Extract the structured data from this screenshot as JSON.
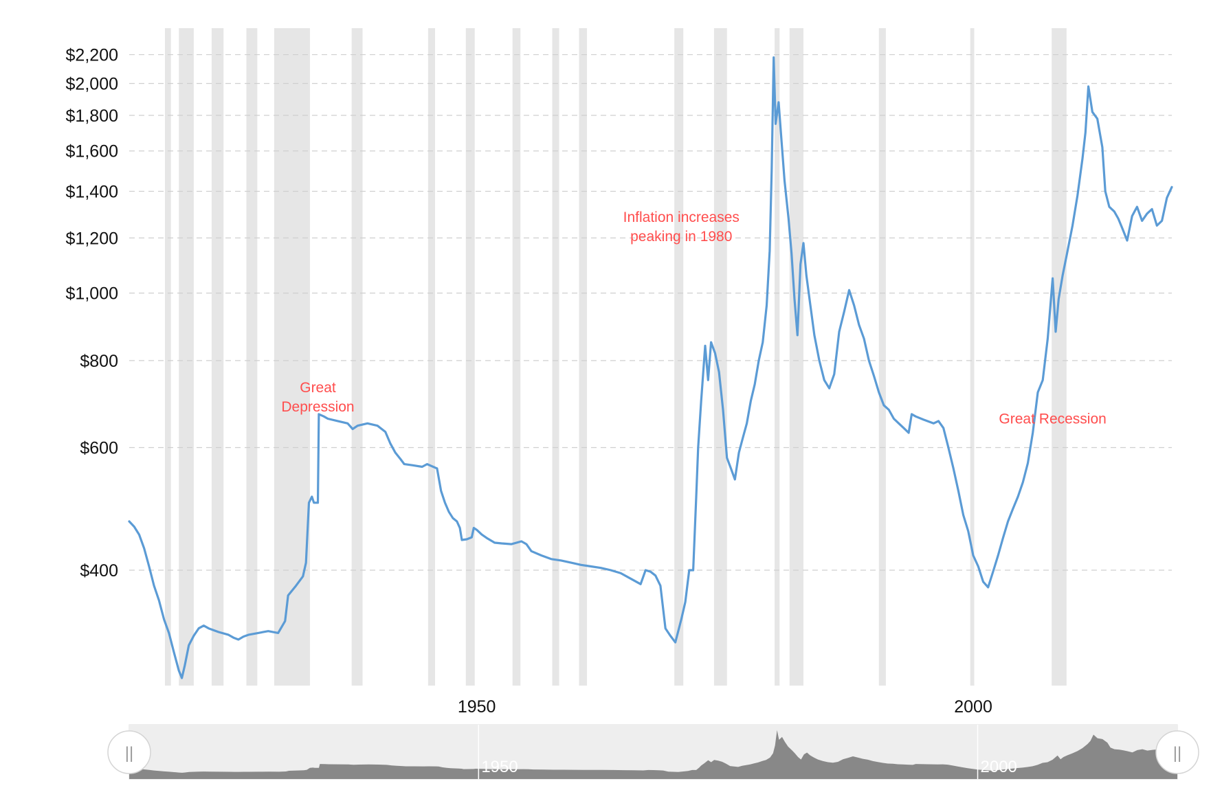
{
  "chart_data": {
    "type": "line",
    "title": "",
    "xlabel": "",
    "ylabel": "",
    "y_scale": "log",
    "xlim": [
      1915,
      2020
    ],
    "ylim": [
      270,
      2300
    ],
    "y_ticks": [
      {
        "value": 400,
        "label": "$400"
      },
      {
        "value": 600,
        "label": "$600"
      },
      {
        "value": 800,
        "label": "$800"
      },
      {
        "value": 1000,
        "label": "$1,000"
      },
      {
        "value": 1200,
        "label": "$1,200"
      },
      {
        "value": 1400,
        "label": "$1,400"
      },
      {
        "value": 1600,
        "label": "$1,600"
      },
      {
        "value": 1800,
        "label": "$1,800"
      },
      {
        "value": 2000,
        "label": "$2,000"
      },
      {
        "value": 2200,
        "label": "$2,200"
      }
    ],
    "x_ticks": [
      {
        "value": 1950,
        "label": "1950"
      },
      {
        "value": 2000,
        "label": "2000"
      }
    ],
    "grid": "horizontal-dashed",
    "line_color": "#5b9bd5",
    "recession_color": "#e6e6e6",
    "recession_bands": [
      [
        1918.6,
        1919.2
      ],
      [
        1920.0,
        1921.5
      ],
      [
        1923.3,
        1924.5
      ],
      [
        1926.8,
        1927.9
      ],
      [
        1929.6,
        1933.2
      ],
      [
        1937.4,
        1938.5
      ],
      [
        1945.1,
        1945.8
      ],
      [
        1948.9,
        1949.8
      ],
      [
        1953.6,
        1954.4
      ],
      [
        1957.6,
        1958.3
      ],
      [
        1960.3,
        1961.1
      ],
      [
        1969.9,
        1970.8
      ],
      [
        1973.9,
        1975.2
      ],
      [
        1980.0,
        1980.5
      ],
      [
        1981.5,
        1982.9
      ],
      [
        1990.5,
        1991.2
      ],
      [
        1999.7,
        2000.1
      ],
      [
        2007.9,
        2009.4
      ]
    ],
    "annotations": [
      {
        "lines": [
          "Great",
          "Depression"
        ],
        "x": 1934.0,
        "y": 720
      },
      {
        "lines": [
          "Inflation increases",
          "peaking in 1980"
        ],
        "x": 1970.6,
        "y": 1265
      },
      {
        "lines": [
          "Great Recession"
        ],
        "x": 2008.0,
        "y": 650
      }
    ],
    "series": [
      {
        "points": [
          [
            1915.0,
            470
          ],
          [
            1915.5,
            462
          ],
          [
            1916.0,
            450
          ],
          [
            1916.5,
            430
          ],
          [
            1917.0,
            405
          ],
          [
            1917.5,
            380
          ],
          [
            1918.0,
            362
          ],
          [
            1918.5,
            340
          ],
          [
            1919.0,
            325
          ],
          [
            1919.5,
            305
          ],
          [
            1920.0,
            287
          ],
          [
            1920.3,
            280
          ],
          [
            1920.6,
            292
          ],
          [
            1921.0,
            312
          ],
          [
            1921.5,
            322
          ],
          [
            1922.0,
            330
          ],
          [
            1922.5,
            333
          ],
          [
            1923.0,
            330
          ],
          [
            1924.0,
            326
          ],
          [
            1925.0,
            323
          ],
          [
            1925.5,
            320
          ],
          [
            1926.0,
            318
          ],
          [
            1926.5,
            321
          ],
          [
            1927.0,
            323
          ],
          [
            1928.0,
            325
          ],
          [
            1929.0,
            327
          ],
          [
            1930.0,
            325
          ],
          [
            1930.7,
            338
          ],
          [
            1931.0,
            368
          ],
          [
            1931.8,
            380
          ],
          [
            1932.5,
            392
          ],
          [
            1932.8,
            410
          ],
          [
            1933.1,
            500
          ],
          [
            1933.4,
            510
          ],
          [
            1933.6,
            500
          ],
          [
            1934.0,
            500
          ],
          [
            1934.1,
            670
          ],
          [
            1934.6,
            665
          ],
          [
            1935.0,
            660
          ],
          [
            1936.0,
            655
          ],
          [
            1937.0,
            650
          ],
          [
            1937.5,
            638
          ],
          [
            1938.0,
            645
          ],
          [
            1939.0,
            650
          ],
          [
            1940.0,
            645
          ],
          [
            1940.8,
            632
          ],
          [
            1941.3,
            608
          ],
          [
            1941.8,
            590
          ],
          [
            1942.3,
            578
          ],
          [
            1942.7,
            568
          ],
          [
            1943.5,
            566
          ],
          [
            1944.5,
            563
          ],
          [
            1945.0,
            568
          ],
          [
            1946.0,
            560
          ],
          [
            1946.4,
            520
          ],
          [
            1946.8,
            500
          ],
          [
            1947.2,
            485
          ],
          [
            1947.6,
            475
          ],
          [
            1948.0,
            470
          ],
          [
            1948.3,
            460
          ],
          [
            1948.5,
            442
          ],
          [
            1949.0,
            443
          ],
          [
            1949.5,
            446
          ],
          [
            1949.7,
            460
          ],
          [
            1950.0,
            457
          ],
          [
            1950.5,
            450
          ],
          [
            1951.0,
            445
          ],
          [
            1951.8,
            438
          ],
          [
            1952.5,
            437
          ],
          [
            1953.5,
            436
          ],
          [
            1954.5,
            440
          ],
          [
            1955.0,
            436
          ],
          [
            1955.5,
            426
          ],
          [
            1956.5,
            420
          ],
          [
            1957.5,
            415
          ],
          [
            1958.5,
            413
          ],
          [
            1959.5,
            410
          ],
          [
            1960.5,
            407
          ],
          [
            1961.5,
            405
          ],
          [
            1962.5,
            403
          ],
          [
            1963.5,
            400
          ],
          [
            1964.5,
            396
          ],
          [
            1965.5,
            389
          ],
          [
            1966.5,
            382
          ],
          [
            1967.0,
            400
          ],
          [
            1967.5,
            398
          ],
          [
            1968.0,
            393
          ],
          [
            1968.5,
            380
          ],
          [
            1969.0,
            330
          ],
          [
            1969.5,
            322
          ],
          [
            1970.0,
            315
          ],
          [
            1970.6,
            340
          ],
          [
            1971.0,
            360
          ],
          [
            1971.4,
            400
          ],
          [
            1971.8,
            400
          ],
          [
            1972.1,
            510
          ],
          [
            1972.3,
            600
          ],
          [
            1972.6,
            700
          ],
          [
            1973.0,
            840
          ],
          [
            1973.3,
            750
          ],
          [
            1973.6,
            850
          ],
          [
            1974.0,
            820
          ],
          [
            1974.4,
            770
          ],
          [
            1974.8,
            680
          ],
          [
            1975.2,
            580
          ],
          [
            1975.6,
            560
          ],
          [
            1976.0,
            540
          ],
          [
            1976.4,
            590
          ],
          [
            1976.8,
            620
          ],
          [
            1977.2,
            650
          ],
          [
            1977.6,
            700
          ],
          [
            1978.0,
            740
          ],
          [
            1978.4,
            800
          ],
          [
            1978.8,
            850
          ],
          [
            1979.2,
            960
          ],
          [
            1979.5,
            1150
          ],
          [
            1979.7,
            1500
          ],
          [
            1979.9,
            2180
          ],
          [
            1980.1,
            1750
          ],
          [
            1980.4,
            1880
          ],
          [
            1980.7,
            1650
          ],
          [
            1981.0,
            1450
          ],
          [
            1981.4,
            1280
          ],
          [
            1981.7,
            1140
          ],
          [
            1982.0,
            980
          ],
          [
            1982.3,
            870
          ],
          [
            1982.6,
            1100
          ],
          [
            1982.9,
            1180
          ],
          [
            1983.2,
            1060
          ],
          [
            1983.6,
            960
          ],
          [
            1984.0,
            870
          ],
          [
            1984.5,
            800
          ],
          [
            1985.0,
            750
          ],
          [
            1985.5,
            730
          ],
          [
            1986.0,
            765
          ],
          [
            1986.5,
            880
          ],
          [
            1987.0,
            940
          ],
          [
            1987.5,
            1010
          ],
          [
            1988.0,
            960
          ],
          [
            1988.5,
            900
          ],
          [
            1989.0,
            860
          ],
          [
            1989.5,
            800
          ],
          [
            1990.0,
            760
          ],
          [
            1990.5,
            720
          ],
          [
            1991.0,
            690
          ],
          [
            1991.5,
            680
          ],
          [
            1992.0,
            660
          ],
          [
            1992.5,
            650
          ],
          [
            1993.0,
            640
          ],
          [
            1993.5,
            630
          ],
          [
            1993.8,
            670
          ],
          [
            1994.2,
            665
          ],
          [
            1995.0,
            658
          ],
          [
            1996.0,
            650
          ],
          [
            1996.5,
            655
          ],
          [
            1997.0,
            640
          ],
          [
            1997.5,
            600
          ],
          [
            1998.0,
            560
          ],
          [
            1998.5,
            520
          ],
          [
            1999.0,
            480
          ],
          [
            1999.5,
            455
          ],
          [
            2000.0,
            420
          ],
          [
            2000.5,
            405
          ],
          [
            2001.0,
            385
          ],
          [
            2001.5,
            378
          ],
          [
            2002.0,
            398
          ],
          [
            2002.5,
            420
          ],
          [
            2003.0,
            445
          ],
          [
            2003.5,
            470
          ],
          [
            2004.0,
            490
          ],
          [
            2004.5,
            510
          ],
          [
            2005.0,
            535
          ],
          [
            2005.5,
            570
          ],
          [
            2006.0,
            630
          ],
          [
            2006.5,
            720
          ],
          [
            2007.0,
            750
          ],
          [
            2007.5,
            860
          ],
          [
            2008.0,
            1050
          ],
          [
            2008.3,
            880
          ],
          [
            2008.6,
            980
          ],
          [
            2009.0,
            1060
          ],
          [
            2009.5,
            1150
          ],
          [
            2010.0,
            1250
          ],
          [
            2010.5,
            1380
          ],
          [
            2011.0,
            1560
          ],
          [
            2011.3,
            1700
          ],
          [
            2011.6,
            1980
          ],
          [
            2012.0,
            1820
          ],
          [
            2012.5,
            1780
          ],
          [
            2013.0,
            1620
          ],
          [
            2013.3,
            1400
          ],
          [
            2013.7,
            1330
          ],
          [
            2014.2,
            1310
          ],
          [
            2014.6,
            1280
          ],
          [
            2015.0,
            1240
          ],
          [
            2015.5,
            1190
          ],
          [
            2016.0,
            1290
          ],
          [
            2016.5,
            1330
          ],
          [
            2017.0,
            1270
          ],
          [
            2017.5,
            1300
          ],
          [
            2018.0,
            1320
          ],
          [
            2018.5,
            1250
          ],
          [
            2019.0,
            1270
          ],
          [
            2019.5,
            1370
          ],
          [
            2020.0,
            1420
          ]
        ]
      }
    ]
  },
  "navigator": {
    "tick_labels": [
      {
        "value": 1950,
        "label": "1950"
      },
      {
        "value": 2000,
        "label": "2000"
      }
    ],
    "handle_glyph": "||",
    "fill_color": "#888888",
    "band_color": "#eeeeee"
  }
}
